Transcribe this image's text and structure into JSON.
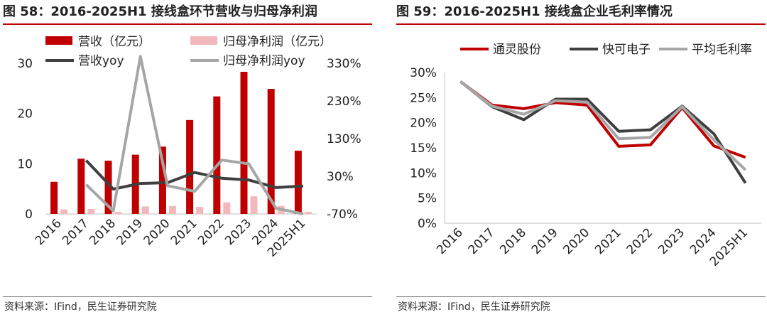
{
  "left_panel": {
    "title": "图 58：2016-2025H1 接线盒环节营收与归母净利润",
    "source": "资料来源：IFind，民生证券研究院"
  },
  "right_panel": {
    "title": "图 59：2016-2025H1 接线盒企业毛利率情况",
    "source": "资料来源：IFind，民生证券研究院"
  },
  "chart_data": [
    {
      "type": "bar",
      "title": "图 58：2016-2025H1 接线盒环节营收与归母净利润",
      "categories": [
        "2016",
        "2017",
        "2018",
        "2019",
        "2020",
        "2021",
        "2022",
        "2023",
        "2024",
        "2025H1"
      ],
      "y_left": {
        "ticks": [
          0,
          10,
          20,
          30
        ],
        "ylim": [
          0,
          30
        ]
      },
      "y_right": {
        "ticks": [
          "-70%",
          "30%",
          "130%",
          "230%",
          "330%"
        ],
        "ylim": [
          -70,
          330
        ]
      },
      "legend_placement": "top",
      "series": [
        {
          "name": "营收（亿元）",
          "kind": "bar",
          "axis": "left",
          "color": "#c00000",
          "values": [
            6.4,
            11.0,
            10.6,
            11.8,
            13.4,
            18.7,
            23.4,
            28.3,
            24.9,
            12.6
          ]
        },
        {
          "name": "归母净利润（亿元）",
          "kind": "bar",
          "axis": "left",
          "color": "#f2b8bb",
          "values": [
            0.9,
            1.0,
            0.4,
            1.5,
            1.6,
            1.4,
            2.3,
            3.5,
            1.6,
            0.4
          ]
        },
        {
          "name": "营收yoy",
          "kind": "line",
          "axis": "right",
          "color": "#3f3f3f",
          "values": [
            null,
            72,
            -4,
            11,
            13,
            40,
            25,
            20,
            0,
            4
          ]
        },
        {
          "name": "归母净利润yoy",
          "kind": "line",
          "axis": "right",
          "color": "#a6a6a6",
          "values": [
            null,
            8,
            -62,
            348,
            5,
            -10,
            73,
            63,
            -55,
            -70
          ]
        }
      ]
    },
    {
      "type": "line",
      "title": "图 59：2016-2025H1 接线盒企业毛利率情况",
      "categories": [
        "2016",
        "2017",
        "2018",
        "2019",
        "2020",
        "2021",
        "2022",
        "2023",
        "2024",
        "2025H1"
      ],
      "y": {
        "ticks": [
          "0%",
          "5%",
          "10%",
          "15%",
          "20%",
          "25%",
          "30%"
        ],
        "ylim": [
          0,
          30
        ]
      },
      "legend_placement": "top",
      "series": [
        {
          "name": "通灵股份",
          "color": "#c00000",
          "values": [
            28.2,
            23.5,
            22.8,
            24.0,
            23.5,
            15.3,
            15.6,
            23.0,
            15.4,
            13.1
          ]
        },
        {
          "name": "快可电子",
          "color": "#3f3f3f",
          "values": [
            28.2,
            23.2,
            20.6,
            24.7,
            24.7,
            18.3,
            18.6,
            23.3,
            17.8,
            8.0
          ]
        },
        {
          "name": "平均毛利率",
          "color": "#a6a6a6",
          "values": [
            28.2,
            23.3,
            21.7,
            24.4,
            24.1,
            16.8,
            17.1,
            23.2,
            16.6,
            10.6
          ]
        }
      ]
    }
  ]
}
